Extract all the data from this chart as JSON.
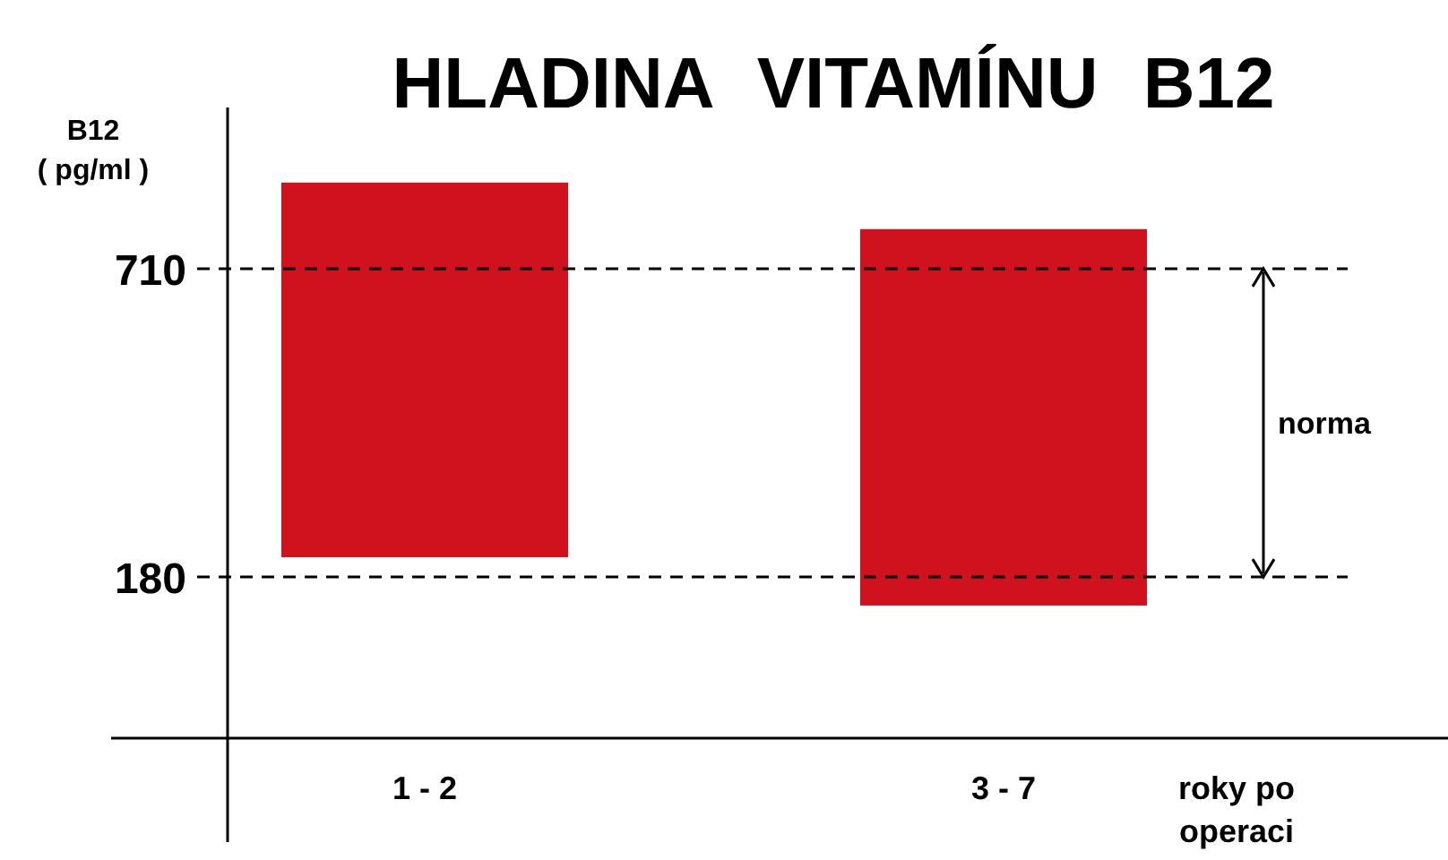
{
  "chart_data": {
    "type": "bar",
    "title": "HLADINA VITAMÍNU B12",
    "ylabel": "B12\n( pg/ml )",
    "xlabel": "roky po\noperaci",
    "categories": [
      "1 - 2",
      "3 - 7"
    ],
    "base": [
      214,
      131
    ],
    "values": [
      644,
      647
    ],
    "color": "#d0121e",
    "ylim": [
      -97,
      987
    ],
    "yticks": [
      180,
      710
    ],
    "grid": false,
    "ref_lines": [
      {
        "axis": "y",
        "value": 710,
        "line_style": "dashed",
        "color": "#000000"
      },
      {
        "axis": "y",
        "value": 180,
        "line_style": "dashed",
        "color": "#000000"
      }
    ],
    "annotations": [
      "norma"
    ]
  }
}
